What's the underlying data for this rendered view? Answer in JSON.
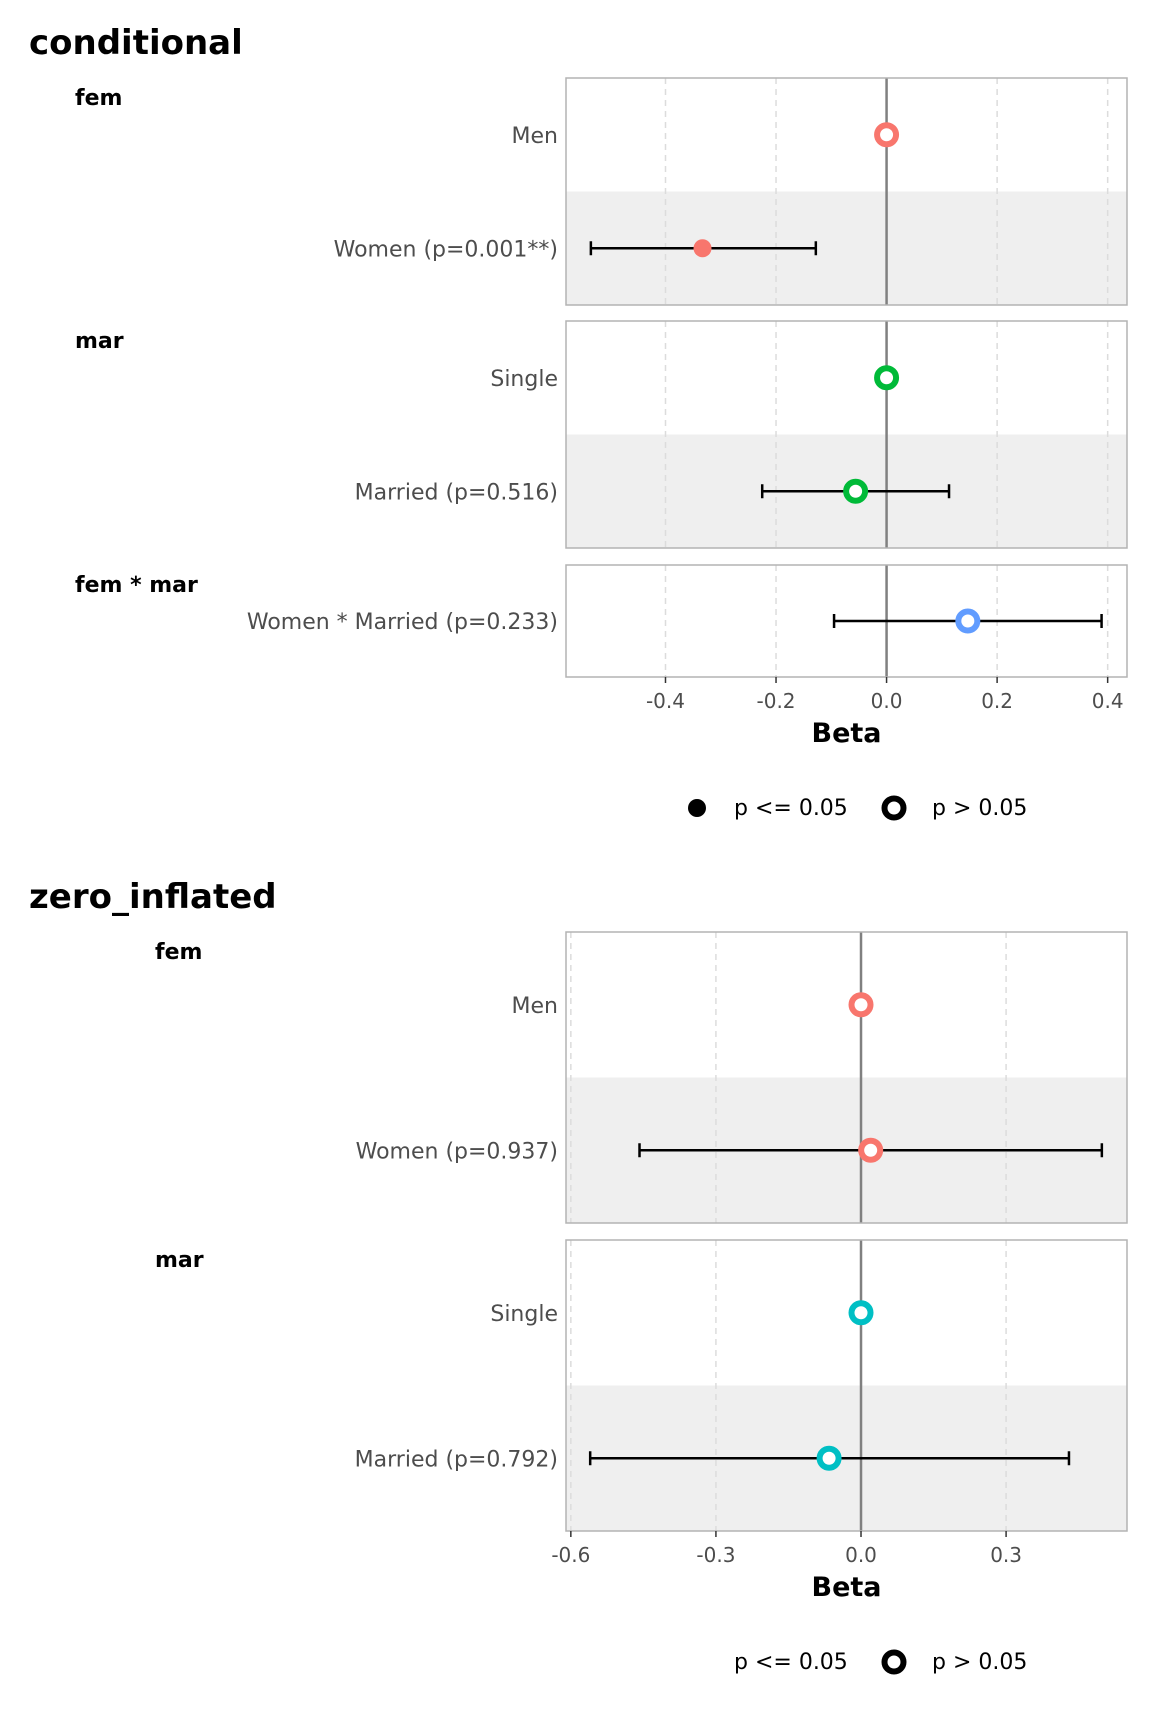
{
  "chart_data": [
    {
      "type": "scatter",
      "title": "conditional",
      "xlabel": "Beta",
      "xlim": [
        -0.58,
        0.435
      ],
      "xticks": [
        -0.4,
        -0.2,
        0.0,
        0.2,
        0.4
      ],
      "xtick_labels": [
        "-0.4",
        "-0.2",
        "0.0",
        "0.2",
        "0.4"
      ],
      "grid": true,
      "reference_line": 0.0,
      "legend_position": "bottom",
      "legend": [
        {
          "label": "p <= 0.05",
          "shape": "filled"
        },
        {
          "label": "p > 0.05",
          "shape": "open"
        }
      ],
      "facets": [
        {
          "name": "fem",
          "color": "#F8766D",
          "rows": [
            {
              "label": "Men",
              "estimate": 0.0,
              "ci_low": null,
              "ci_high": null,
              "significant": false
            },
            {
              "label": "Women (p=0.001**)",
              "estimate": -0.333,
              "ci_low": -0.535,
              "ci_high": -0.128,
              "significant": true
            }
          ]
        },
        {
          "name": "mar",
          "color": "#00BA38",
          "rows": [
            {
              "label": "Single",
              "estimate": 0.0,
              "ci_low": null,
              "ci_high": null,
              "significant": false
            },
            {
              "label": "Married (p=0.516)",
              "estimate": -0.056,
              "ci_low": -0.225,
              "ci_high": 0.113,
              "significant": false
            }
          ]
        },
        {
          "name": "fem * mar",
          "color": "#619CFF",
          "rows": [
            {
              "label": "Women * Married (p=0.233)",
              "estimate": 0.147,
              "ci_low": -0.095,
              "ci_high": 0.389,
              "significant": false
            }
          ]
        }
      ]
    },
    {
      "type": "scatter",
      "title": "zero_inflated",
      "xlabel": "Beta",
      "xlim": [
        -0.61,
        0.55
      ],
      "xticks": [
        -0.6,
        -0.3,
        0.0,
        0.3
      ],
      "xtick_labels": [
        "-0.6",
        "-0.3",
        "0.0",
        "0.3"
      ],
      "grid": true,
      "reference_line": 0.0,
      "legend_position": "bottom",
      "legend": [
        {
          "label": "p <= 0.05",
          "shape": "filled"
        },
        {
          "label": "p > 0.05",
          "shape": "open"
        }
      ],
      "facets": [
        {
          "name": "fem",
          "color": "#F8766D",
          "rows": [
            {
              "label": "Men",
              "estimate": 0.0,
              "ci_low": null,
              "ci_high": null,
              "significant": false
            },
            {
              "label": "Women (p=0.937)",
              "estimate": 0.02,
              "ci_low": -0.458,
              "ci_high": 0.498,
              "significant": false
            }
          ]
        },
        {
          "name": "mar",
          "color": "#00BFC4",
          "rows": [
            {
              "label": "Single",
              "estimate": 0.0,
              "ci_low": null,
              "ci_high": null,
              "significant": false
            },
            {
              "label": "Married (p=0.792)",
              "estimate": -0.066,
              "ci_low": -0.56,
              "ci_high": 0.43,
              "significant": false
            }
          ]
        }
      ]
    }
  ]
}
